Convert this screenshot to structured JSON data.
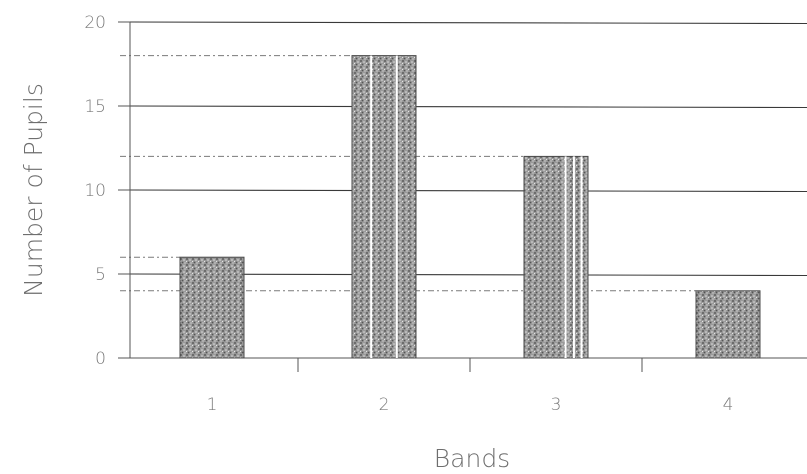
{
  "chart_data": {
    "type": "bar",
    "categories": [
      "1",
      "2",
      "3",
      "4"
    ],
    "values": [
      6,
      18,
      12,
      4
    ],
    "xlabel": "Bands",
    "ylabel": "Number of Pupils",
    "ylim": [
      0,
      20
    ],
    "yticks": [
      "0",
      "5",
      "10",
      "15",
      "20"
    ],
    "grid": true,
    "legend": "none",
    "bar_color": "#8a8a8a"
  }
}
